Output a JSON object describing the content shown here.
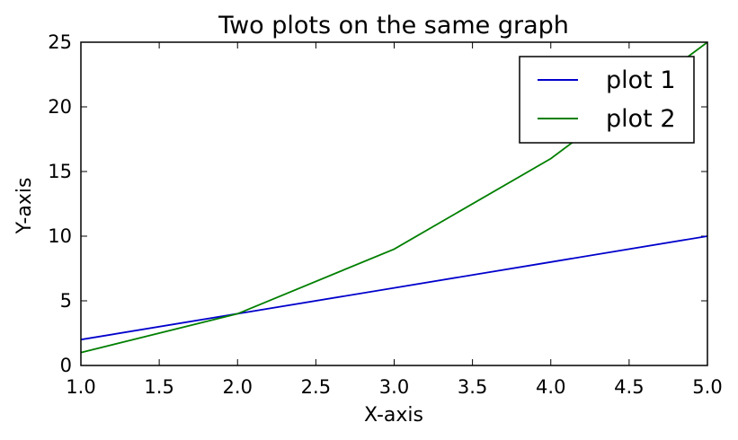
{
  "chart_data": {
    "type": "line",
    "title": "Two plots on the same graph",
    "xlabel": "X-axis",
    "ylabel": "Y-axis",
    "xlim": [
      1.0,
      5.0
    ],
    "ylim": [
      0,
      25
    ],
    "xticks": [
      "1.0",
      "1.5",
      "2.0",
      "2.5",
      "3.0",
      "3.5",
      "4.0",
      "4.5",
      "5.0"
    ],
    "yticks": [
      "0",
      "5",
      "10",
      "15",
      "20",
      "25"
    ],
    "grid": false,
    "legend_position": "top-right",
    "x": [
      1,
      2,
      3,
      4,
      5
    ],
    "series": [
      {
        "name": "plot 1",
        "color": "#0000cc",
        "values": [
          2,
          4,
          6,
          8,
          10
        ]
      },
      {
        "name": "plot 2",
        "color": "#007f00",
        "values": [
          1,
          4,
          9,
          16,
          25
        ]
      }
    ]
  }
}
